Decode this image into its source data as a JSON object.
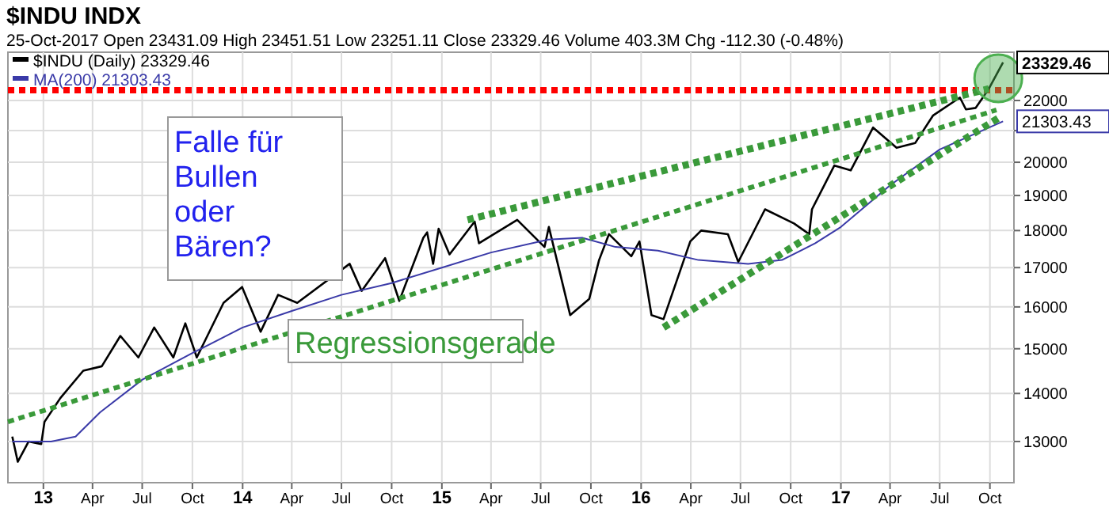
{
  "chart_data": {
    "type": "line",
    "title": "$INDU INDX",
    "subtitle": "25-Oct-2017  Open 23431.09  High 23451.51  Low 23251.11  Close 23329.46  Volume 403.3M  Chg -112.30 (-0.48%)",
    "log": "y",
    "grid": true,
    "legend": "top left",
    "xlim": [
      "2012-10-28",
      "2017-11-14"
    ],
    "xticks": [
      {
        "value": "2013-01-01",
        "label": "13"
      },
      {
        "value": "2013-04-01",
        "label": "Apr"
      },
      {
        "value": "2013-07-01",
        "label": "Jul"
      },
      {
        "value": "2013-10-01",
        "label": "Oct"
      },
      {
        "value": "2014-01-01",
        "label": "14"
      },
      {
        "value": "2014-04-01",
        "label": "Apr"
      },
      {
        "value": "2014-07-01",
        "label": "Jul"
      },
      {
        "value": "2014-10-01",
        "label": "Oct"
      },
      {
        "value": "2015-01-01",
        "label": "15"
      },
      {
        "value": "2015-04-01",
        "label": "Apr"
      },
      {
        "value": "2015-07-01",
        "label": "Jul"
      },
      {
        "value": "2015-10-01",
        "label": "Oct"
      },
      {
        "value": "2016-01-01",
        "label": "16"
      },
      {
        "value": "2016-04-01",
        "label": "Apr"
      },
      {
        "value": "2016-07-01",
        "label": "Jul"
      },
      {
        "value": "2016-10-01",
        "label": "Oct"
      },
      {
        "value": "2017-01-01",
        "label": "17"
      },
      {
        "value": "2017-04-01",
        "label": "Apr"
      },
      {
        "value": "2017-07-01",
        "label": "Jul"
      },
      {
        "value": "2017-10-01",
        "label": "Oct"
      }
    ],
    "ylim": [
      12200,
      23700
    ],
    "yticks": [
      13000,
      14000,
      15000,
      16000,
      17000,
      18000,
      19000,
      20000,
      {
        "value": 21000,
        "label": null
      },
      22000
    ],
    "series": [
      {
        "name": "$INDU (Daily) 23329.46",
        "color": "#000000",
        "x": [
          "2012-11-05",
          "2012-11-15",
          "2012-12-05",
          "2012-12-28",
          "2013-01-03",
          "2013-02-01",
          "2013-03-15",
          "2013-04-18",
          "2013-05-22",
          "2013-06-24",
          "2013-07-23",
          "2013-08-27",
          "2013-09-18",
          "2013-10-09",
          "2013-11-27",
          "2013-12-31",
          "2014-02-03",
          "2014-03-07",
          "2014-04-11",
          "2014-07-16",
          "2014-08-07",
          "2014-09-19",
          "2014-10-15",
          "2014-11-28",
          "2014-12-05",
          "2014-12-16",
          "2014-12-26",
          "2015-01-15",
          "2015-03-02",
          "2015-03-10",
          "2015-05-19",
          "2015-07-08",
          "2015-07-16",
          "2015-08-24",
          "2015-09-28",
          "2015-10-16",
          "2015-11-03",
          "2015-12-14",
          "2015-12-29",
          "2016-01-20",
          "2016-02-11",
          "2016-03-31",
          "2016-04-20",
          "2016-06-08",
          "2016-06-27",
          "2016-08-15",
          "2016-10-07",
          "2016-11-04",
          "2016-11-09",
          "2016-12-20",
          "2017-01-19",
          "2017-03-01",
          "2017-04-13",
          "2017-05-17",
          "2017-06-19",
          "2017-08-07",
          "2017-08-18",
          "2017-09-05",
          "2017-09-29",
          "2017-10-25"
        ],
        "values": [
          13100,
          12600,
          13000,
          12950,
          13400,
          13900,
          14500,
          14600,
          15300,
          14800,
          15500,
          14800,
          15600,
          14800,
          16100,
          16500,
          15400,
          16300,
          16100,
          17100,
          16400,
          17250,
          16150,
          17800,
          17950,
          17100,
          18050,
          17350,
          18250,
          17650,
          18300,
          17550,
          18100,
          15800,
          16200,
          17200,
          17900,
          17300,
          17700,
          15800,
          15700,
          17700,
          18000,
          17900,
          17150,
          18600,
          18200,
          17900,
          18600,
          19900,
          19750,
          21100,
          20450,
          20600,
          21500,
          22100,
          21700,
          21750,
          22400,
          23329.46
        ]
      },
      {
        "name": "MA(200) 21303.43",
        "color": "#3a3aa8",
        "x": [
          "2012-11-05",
          "2013-01-15",
          "2013-03-01",
          "2013-04-15",
          "2013-07-01",
          "2013-10-01",
          "2014-01-01",
          "2014-04-01",
          "2014-07-01",
          "2014-10-01",
          "2015-01-01",
          "2015-04-01",
          "2015-07-15",
          "2015-09-15",
          "2015-11-15",
          "2016-02-01",
          "2016-04-15",
          "2016-07-15",
          "2016-09-15",
          "2016-11-15",
          "2017-01-01",
          "2017-04-01",
          "2017-07-01",
          "2017-10-25"
        ],
        "values": [
          13000,
          13000,
          13100,
          13600,
          14300,
          14900,
          15500,
          15900,
          16300,
          16600,
          17000,
          17400,
          17750,
          17800,
          17550,
          17450,
          17200,
          17100,
          17200,
          17650,
          18100,
          19300,
          20400,
          21303.43
        ]
      },
      {
        "type": "line",
        "line_style": "dotted",
        "color": "#3a9a3a",
        "x": [
          "2012-10-28",
          "2017-10-13"
        ],
        "values": [
          13400,
          21680
        ]
      },
      {
        "type": "line",
        "line_style": "dotted",
        "color": "#3a9a3a",
        "x": [
          "2015-02-17",
          "2017-09-29"
        ],
        "values": [
          18300,
          22400
        ]
      },
      {
        "type": "line",
        "line_style": "dotted",
        "color": "#3a9a3a",
        "x": [
          "2016-02-11",
          "2017-10-20"
        ],
        "values": [
          15500,
          21450
        ]
      }
    ],
    "ref_lines": [
      {
        "axis": "y",
        "value": 22350,
        "color": "#ff0000",
        "line_style": "dotted"
      }
    ],
    "annotations": [
      "Falle für\nBullen\noder\nBären?",
      "Regressionsgerade",
      {
        "text": "23329.46",
        "x": "2017-10-25",
        "y": 23329.46
      },
      {
        "text": "21303.43",
        "x": "2017-10-25",
        "y": 21303.43
      }
    ]
  }
}
